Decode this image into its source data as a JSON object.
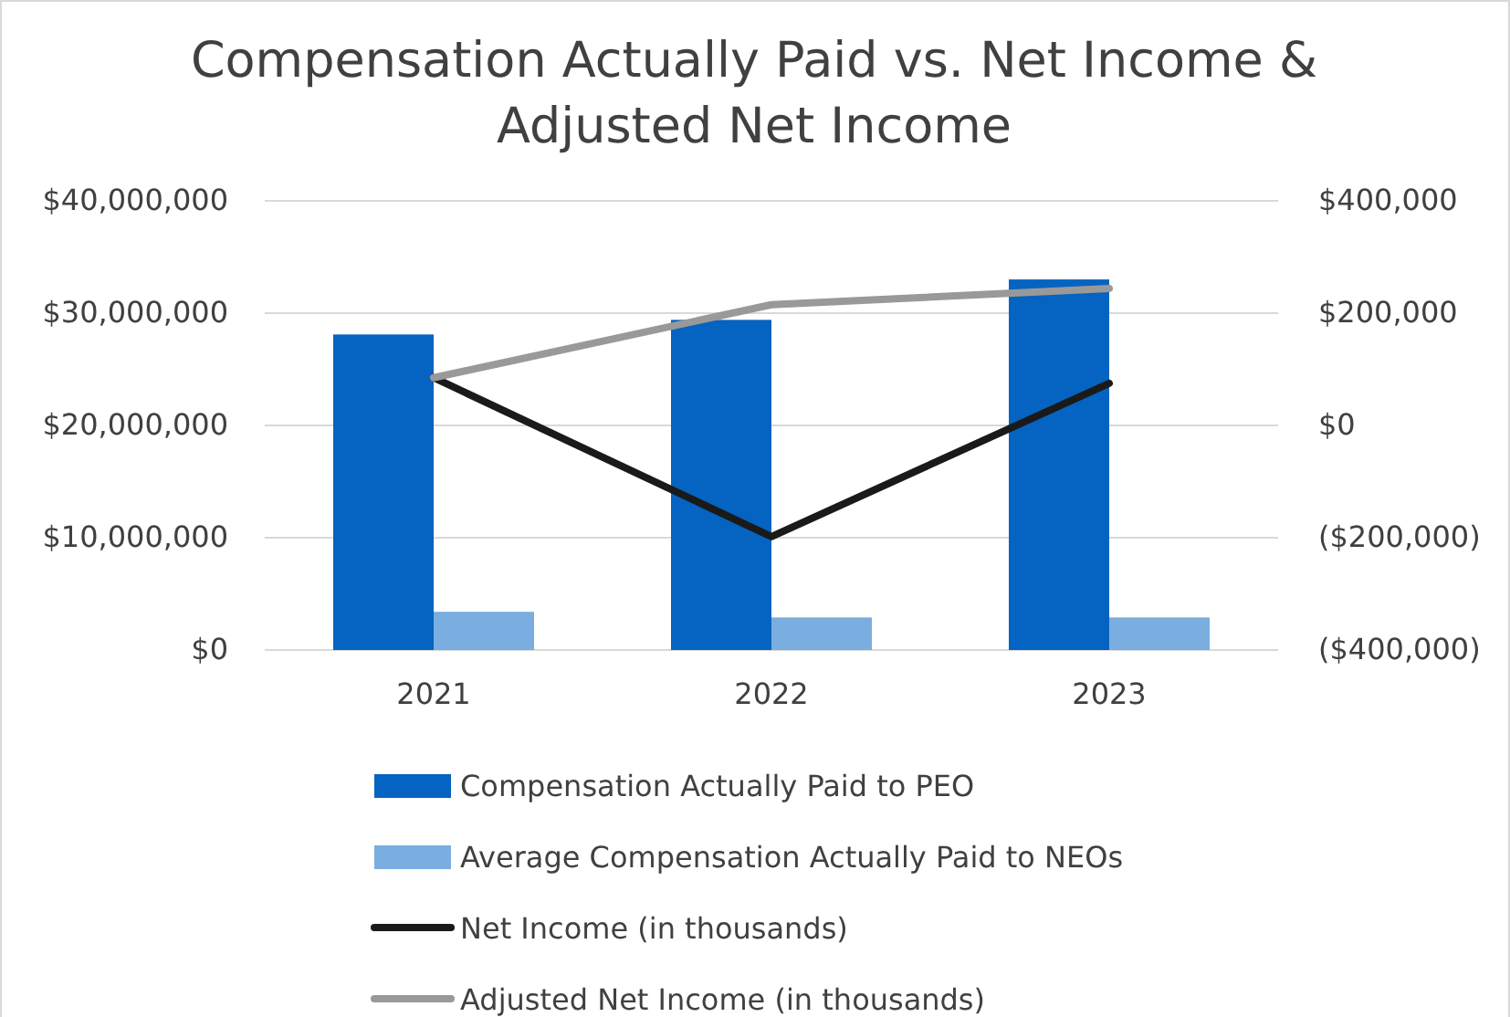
{
  "chart_data": {
    "type": "bar",
    "title": "Compensation Actually Paid vs. Net Income & Adjusted Net Income",
    "categories": [
      "2021",
      "2022",
      "2023"
    ],
    "series": [
      {
        "name": "Compensation Actually Paid to PEO",
        "color": "#0563c1",
        "values": [
          28100000,
          29400000,
          33000000
        ]
      },
      {
        "name": "Average Compensation Actually Paid to NEOs",
        "color": "#7aaee0",
        "values": [
          3400000,
          2900000,
          2900000
        ]
      },
      {
        "name": "Net Income (in thousands)",
        "type": "line",
        "axis": "y2",
        "color": "#1a1a1a",
        "values": [
          85000,
          -198000,
          75000
        ]
      },
      {
        "name": "Adjusted Net Income (in thousands)",
        "type": "line",
        "axis": "y2",
        "color": "#999999",
        "values": [
          85000,
          215000,
          244000
        ]
      }
    ],
    "ylim": [
      0,
      40000000
    ],
    "yticks": [
      {
        "value": 0,
        "label": "$0"
      },
      {
        "value": 10000000,
        "label": "$10,000,000"
      },
      {
        "value": 20000000,
        "label": "$20,000,000"
      },
      {
        "value": 30000000,
        "label": "$30,000,000"
      },
      {
        "value": 40000000,
        "label": "$40,000,000"
      }
    ],
    "y2lim": [
      -400000,
      400000
    ],
    "y2ticks": [
      {
        "value": -400000,
        "label": "($400,000)"
      },
      {
        "value": -200000,
        "label": "($200,000)"
      },
      {
        "value": 0,
        "label": "$0"
      },
      {
        "value": 200000,
        "label": "$200,000"
      },
      {
        "value": 400000,
        "label": "$400,000"
      }
    ],
    "grid": "y",
    "legend": "bottom",
    "marker": "none",
    "line_style": "solid"
  }
}
